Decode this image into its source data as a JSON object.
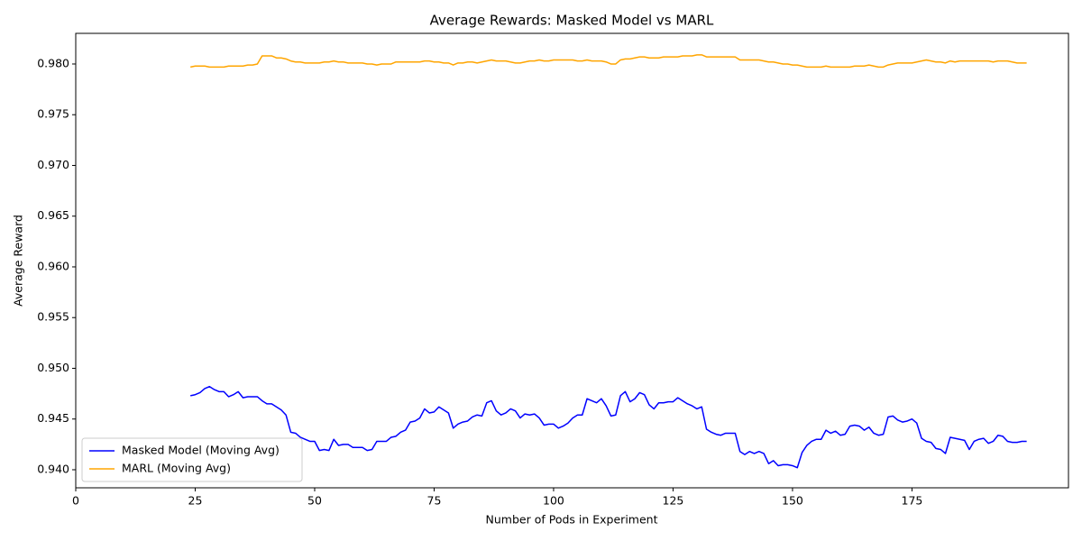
{
  "chart_data": {
    "type": "line",
    "title": "Average Rewards: Masked Model vs MARL",
    "x_label": "Number of Pods in Experiment",
    "y_label": "Average Reward",
    "x": [
      24,
      25,
      26,
      27,
      28,
      29,
      30,
      31,
      32,
      33,
      34,
      35,
      36,
      37,
      38,
      39,
      40,
      41,
      42,
      43,
      44,
      45,
      46,
      47,
      48,
      49,
      50,
      51,
      52,
      53,
      54,
      55,
      56,
      57,
      58,
      59,
      60,
      61,
      62,
      63,
      64,
      65,
      66,
      67,
      68,
      69,
      70,
      71,
      72,
      73,
      74,
      75,
      76,
      77,
      78,
      79,
      80,
      81,
      82,
      83,
      84,
      85,
      86,
      87,
      88,
      89,
      90,
      91,
      92,
      93,
      94,
      95,
      96,
      97,
      98,
      99,
      100,
      101,
      102,
      103,
      104,
      105,
      106,
      107,
      108,
      109,
      110,
      111,
      112,
      113,
      114,
      115,
      116,
      117,
      118,
      119,
      120,
      121,
      122,
      123,
      124,
      125,
      126,
      127,
      128,
      129,
      130,
      131,
      132,
      133,
      134,
      135,
      136,
      137,
      138,
      139,
      140,
      141,
      142,
      143,
      144,
      145,
      146,
      147,
      148,
      149,
      150,
      151,
      152,
      153,
      154,
      155,
      156,
      157,
      158,
      159,
      160,
      161,
      162,
      163,
      164,
      165,
      166,
      167,
      168,
      169,
      170,
      171,
      172,
      173,
      174,
      175,
      176,
      177,
      178,
      179,
      180,
      181,
      182,
      183,
      184,
      185,
      186,
      187,
      188,
      189,
      190,
      191,
      192,
      193,
      194,
      195,
      196,
      197,
      198,
      199
    ],
    "series": [
      {
        "name": "Masked Model (Moving Avg)",
        "color": "#0000ff",
        "values": [
          0.9473,
          0.9474,
          0.9476,
          0.948,
          0.9482,
          0.9479,
          0.9477,
          0.9477,
          0.9472,
          0.9474,
          0.9477,
          0.9471,
          0.9472,
          0.9472,
          0.9472,
          0.9468,
          0.9465,
          0.9465,
          0.9462,
          0.9459,
          0.9454,
          0.9437,
          0.9436,
          0.9432,
          0.943,
          0.9428,
          0.9428,
          0.9419,
          0.942,
          0.9419,
          0.943,
          0.9424,
          0.9425,
          0.9425,
          0.9422,
          0.9422,
          0.9422,
          0.9419,
          0.942,
          0.9428,
          0.9428,
          0.9428,
          0.9432,
          0.9433,
          0.9437,
          0.9439,
          0.9447,
          0.9448,
          0.9451,
          0.946,
          0.9456,
          0.9457,
          0.9462,
          0.9459,
          0.9456,
          0.9441,
          0.9445,
          0.9447,
          0.9448,
          0.9452,
          0.9454,
          0.9453,
          0.9466,
          0.9468,
          0.9458,
          0.9454,
          0.9456,
          0.946,
          0.9458,
          0.9451,
          0.9455,
          0.9454,
          0.9455,
          0.9451,
          0.9444,
          0.9445,
          0.9445,
          0.9441,
          0.9443,
          0.9446,
          0.9451,
          0.9454,
          0.9454,
          0.947,
          0.9468,
          0.9466,
          0.947,
          0.9463,
          0.9453,
          0.9454,
          0.9473,
          0.9477,
          0.9467,
          0.947,
          0.9476,
          0.9474,
          0.9464,
          0.946,
          0.9466,
          0.9466,
          0.9467,
          0.9467,
          0.9471,
          0.9468,
          0.9465,
          0.9463,
          0.946,
          0.9462,
          0.944,
          0.9437,
          0.9435,
          0.9434,
          0.9436,
          0.9436,
          0.9436,
          0.9418,
          0.9415,
          0.9418,
          0.9416,
          0.9418,
          0.9416,
          0.9406,
          0.9409,
          0.9404,
          0.9405,
          0.9405,
          0.9404,
          0.9402,
          0.9417,
          0.9424,
          0.9428,
          0.943,
          0.943,
          0.9439,
          0.9436,
          0.9438,
          0.9434,
          0.9435,
          0.9443,
          0.9444,
          0.9443,
          0.9439,
          0.9442,
          0.9436,
          0.9434,
          0.9435,
          0.9452,
          0.9453,
          0.9449,
          0.9447,
          0.9448,
          0.945,
          0.9446,
          0.9431,
          0.9428,
          0.9427,
          0.9421,
          0.942,
          0.9416,
          0.9432,
          0.9431,
          0.943,
          0.9429,
          0.942,
          0.9428,
          0.943,
          0.9431,
          0.9426,
          0.9428,
          0.9434,
          0.9433,
          0.9428,
          0.9427,
          0.9427,
          0.9428,
          0.9428
        ]
      },
      {
        "name": "MARL (Moving Avg)",
        "color": "#ffa500",
        "values": [
          0.9797,
          0.9798,
          0.9798,
          0.9798,
          0.9797,
          0.9797,
          0.9797,
          0.9797,
          0.9798,
          0.9798,
          0.9798,
          0.9798,
          0.9799,
          0.9799,
          0.98,
          0.9808,
          0.9808,
          0.9808,
          0.9806,
          0.9806,
          0.9805,
          0.9803,
          0.9802,
          0.9802,
          0.9801,
          0.9801,
          0.9801,
          0.9801,
          0.9802,
          0.9802,
          0.9803,
          0.9802,
          0.9802,
          0.9801,
          0.9801,
          0.9801,
          0.9801,
          0.98,
          0.98,
          0.9799,
          0.98,
          0.98,
          0.98,
          0.9802,
          0.9802,
          0.9802,
          0.9802,
          0.9802,
          0.9802,
          0.9803,
          0.9803,
          0.9802,
          0.9802,
          0.9801,
          0.9801,
          0.9799,
          0.9801,
          0.9801,
          0.9802,
          0.9802,
          0.9801,
          0.9802,
          0.9803,
          0.9804,
          0.9803,
          0.9803,
          0.9803,
          0.9802,
          0.9801,
          0.9801,
          0.9802,
          0.9803,
          0.9803,
          0.9804,
          0.9803,
          0.9803,
          0.9804,
          0.9804,
          0.9804,
          0.9804,
          0.9804,
          0.9803,
          0.9803,
          0.9804,
          0.9803,
          0.9803,
          0.9803,
          0.9802,
          0.98,
          0.98,
          0.9804,
          0.9805,
          0.9805,
          0.9806,
          0.9807,
          0.9807,
          0.9806,
          0.9806,
          0.9806,
          0.9807,
          0.9807,
          0.9807,
          0.9807,
          0.9808,
          0.9808,
          0.9808,
          0.9809,
          0.9809,
          0.9807,
          0.9807,
          0.9807,
          0.9807,
          0.9807,
          0.9807,
          0.9807,
          0.9804,
          0.9804,
          0.9804,
          0.9804,
          0.9804,
          0.9803,
          0.9802,
          0.9802,
          0.9801,
          0.98,
          0.98,
          0.9799,
          0.9799,
          0.9798,
          0.9797,
          0.9797,
          0.9797,
          0.9797,
          0.9798,
          0.9797,
          0.9797,
          0.9797,
          0.9797,
          0.9797,
          0.9798,
          0.9798,
          0.9798,
          0.9799,
          0.9798,
          0.9797,
          0.9797,
          0.9799,
          0.98,
          0.9801,
          0.9801,
          0.9801,
          0.9801,
          0.9802,
          0.9803,
          0.9804,
          0.9803,
          0.9802,
          0.9802,
          0.9801,
          0.9803,
          0.9802,
          0.9803,
          0.9803,
          0.9803,
          0.9803,
          0.9803,
          0.9803,
          0.9803,
          0.9802,
          0.9803,
          0.9803,
          0.9803,
          0.9802,
          0.9801,
          0.9801,
          0.9801
        ]
      }
    ],
    "xlim": [
      0,
      207.75
    ],
    "ylim": [
      0.93822,
      0.98302
    ],
    "xticks": [
      0,
      25,
      50,
      75,
      100,
      125,
      150,
      175
    ],
    "yticks": [
      {
        "value": 0.94,
        "label": "0.940"
      },
      0.945,
      {
        "value": 0.95,
        "label": "0.950"
      },
      0.955,
      {
        "value": 0.96,
        "label": "0.960"
      },
      0.965,
      {
        "value": 0.97,
        "label": "0.970"
      },
      0.975,
      {
        "value": 0.98,
        "label": "0.980"
      }
    ],
    "grid": false,
    "legend": "lower left"
  }
}
